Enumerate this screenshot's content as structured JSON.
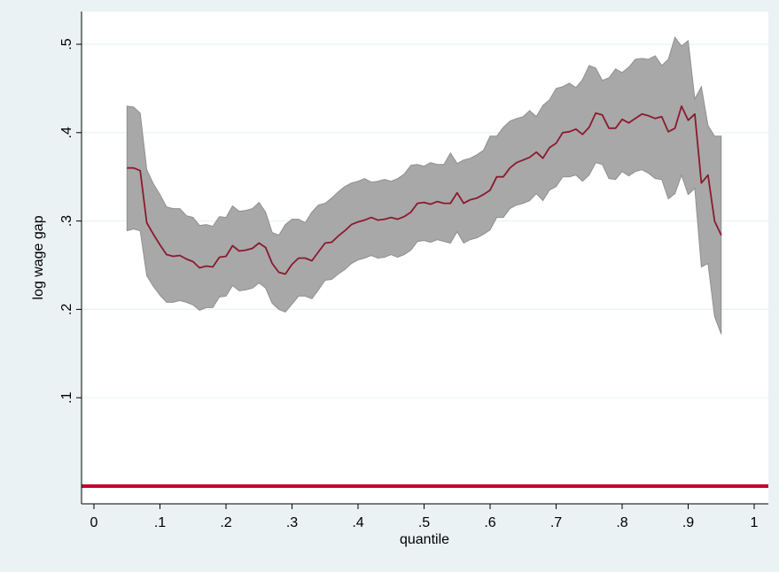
{
  "chart_data": {
    "type": "area",
    "title": "",
    "xlabel": "quantile",
    "ylabel": "log wage gap",
    "xlim": [
      -0.02,
      1.02
    ],
    "ylim": [
      -0.02,
      0.52
    ],
    "x_ticks": [
      0,
      0.1,
      0.2,
      0.3,
      0.4,
      0.5,
      0.6,
      0.7,
      0.8,
      0.9,
      1
    ],
    "x_tick_labels": [
      "0",
      ".1",
      ".2",
      ".3",
      ".4",
      ".5",
      ".6",
      ".7",
      ".8",
      ".9",
      "1"
    ],
    "y_ticks": [
      0.1,
      0.2,
      0.3,
      0.4,
      0.5
    ],
    "y_tick_labels": [
      ".1",
      ".2",
      ".3",
      ".4",
      ".5"
    ],
    "grid": "horizontal",
    "colors": {
      "outer_background": "#eaf2f3",
      "plot_background": "#ffffff",
      "gridline": "#eaf2f3",
      "band_fill": "#a8a8a8",
      "band_stroke": "#8f8f8f",
      "estimate_line": "#8b1a2e",
      "zero_line": "#c10534"
    },
    "zero_line": {
      "y": 0
    },
    "x": [
      0.05,
      0.06,
      0.07,
      0.08,
      0.09,
      0.1,
      0.11,
      0.12,
      0.13,
      0.14,
      0.15,
      0.16,
      0.17,
      0.18,
      0.19,
      0.2,
      0.21,
      0.22,
      0.23,
      0.24,
      0.25,
      0.26,
      0.27,
      0.28,
      0.29,
      0.3,
      0.31,
      0.32,
      0.33,
      0.34,
      0.35,
      0.36,
      0.37,
      0.38,
      0.39,
      0.4,
      0.41,
      0.42,
      0.43,
      0.44,
      0.45,
      0.46,
      0.47,
      0.48,
      0.49,
      0.5,
      0.51,
      0.52,
      0.53,
      0.54,
      0.55,
      0.56,
      0.57,
      0.58,
      0.59,
      0.6,
      0.61,
      0.62,
      0.63,
      0.64,
      0.65,
      0.66,
      0.67,
      0.68,
      0.69,
      0.7,
      0.71,
      0.72,
      0.73,
      0.74,
      0.75,
      0.76,
      0.77,
      0.78,
      0.79,
      0.8,
      0.81,
      0.82,
      0.83,
      0.84,
      0.85,
      0.86,
      0.87,
      0.88,
      0.89,
      0.9,
      0.91,
      0.92,
      0.93,
      0.94,
      0.95
    ],
    "series": [
      {
        "role": "estimate",
        "values": [
          0.36,
          0.36,
          0.357,
          0.298,
          0.285,
          0.273,
          0.262,
          0.26,
          0.261,
          0.257,
          0.254,
          0.247,
          0.249,
          0.248,
          0.259,
          0.26,
          0.272,
          0.266,
          0.267,
          0.269,
          0.275,
          0.27,
          0.252,
          0.242,
          0.24,
          0.251,
          0.258,
          0.258,
          0.255,
          0.265,
          0.275,
          0.276,
          0.283,
          0.289,
          0.296,
          0.299,
          0.301,
          0.304,
          0.301,
          0.302,
          0.304,
          0.302,
          0.305,
          0.31,
          0.32,
          0.321,
          0.319,
          0.322,
          0.32,
          0.32,
          0.332,
          0.32,
          0.324,
          0.326,
          0.33,
          0.335,
          0.35,
          0.35,
          0.36,
          0.366,
          0.369,
          0.372,
          0.378,
          0.371,
          0.383,
          0.388,
          0.4,
          0.401,
          0.404,
          0.398,
          0.406,
          0.422,
          0.42,
          0.405,
          0.405,
          0.415,
          0.411,
          0.416,
          0.421,
          0.419,
          0.416,
          0.418,
          0.401,
          0.405,
          0.43,
          0.414,
          0.421,
          0.343,
          0.352,
          0.3,
          0.284
        ]
      },
      {
        "role": "upper_ci",
        "values": [
          0.43,
          0.429,
          0.422,
          0.358,
          0.342,
          0.33,
          0.316,
          0.314,
          0.314,
          0.306,
          0.304,
          0.295,
          0.296,
          0.294,
          0.305,
          0.304,
          0.317,
          0.311,
          0.312,
          0.314,
          0.321,
          0.31,
          0.287,
          0.284,
          0.296,
          0.302,
          0.302,
          0.298,
          0.31,
          0.318,
          0.32,
          0.326,
          0.333,
          0.339,
          0.343,
          0.345,
          0.348,
          0.344,
          0.345,
          0.347,
          0.345,
          0.348,
          0.353,
          0.363,
          0.364,
          0.362,
          0.366,
          0.364,
          0.364,
          0.377,
          0.365,
          0.369,
          0.371,
          0.375,
          0.38,
          0.396,
          0.396,
          0.406,
          0.413,
          0.416,
          0.418,
          0.425,
          0.418,
          0.431,
          0.437,
          0.45,
          0.452,
          0.456,
          0.451,
          0.46,
          0.476,
          0.473,
          0.459,
          0.462,
          0.472,
          0.468,
          0.474,
          0.483,
          0.484,
          0.483,
          0.487,
          0.476,
          0.483,
          0.508,
          0.498,
          0.504,
          0.438,
          0.452,
          0.408,
          0.396,
          0.396
        ]
      },
      {
        "role": "lower_ci",
        "values": [
          0.289,
          0.291,
          0.289,
          0.238,
          0.226,
          0.216,
          0.208,
          0.208,
          0.21,
          0.208,
          0.205,
          0.199,
          0.202,
          0.202,
          0.214,
          0.215,
          0.227,
          0.221,
          0.222,
          0.224,
          0.23,
          0.224,
          0.207,
          0.2,
          0.197,
          0.206,
          0.215,
          0.215,
          0.212,
          0.222,
          0.233,
          0.234,
          0.24,
          0.245,
          0.252,
          0.256,
          0.258,
          0.261,
          0.258,
          0.259,
          0.262,
          0.259,
          0.262,
          0.267,
          0.277,
          0.278,
          0.276,
          0.279,
          0.277,
          0.275,
          0.288,
          0.275,
          0.279,
          0.281,
          0.285,
          0.29,
          0.304,
          0.304,
          0.314,
          0.318,
          0.32,
          0.323,
          0.331,
          0.323,
          0.335,
          0.339,
          0.35,
          0.35,
          0.352,
          0.345,
          0.352,
          0.366,
          0.364,
          0.348,
          0.347,
          0.356,
          0.351,
          0.356,
          0.358,
          0.354,
          0.348,
          0.347,
          0.325,
          0.331,
          0.352,
          0.33,
          0.337,
          0.248,
          0.252,
          0.192,
          0.172
        ]
      }
    ]
  }
}
